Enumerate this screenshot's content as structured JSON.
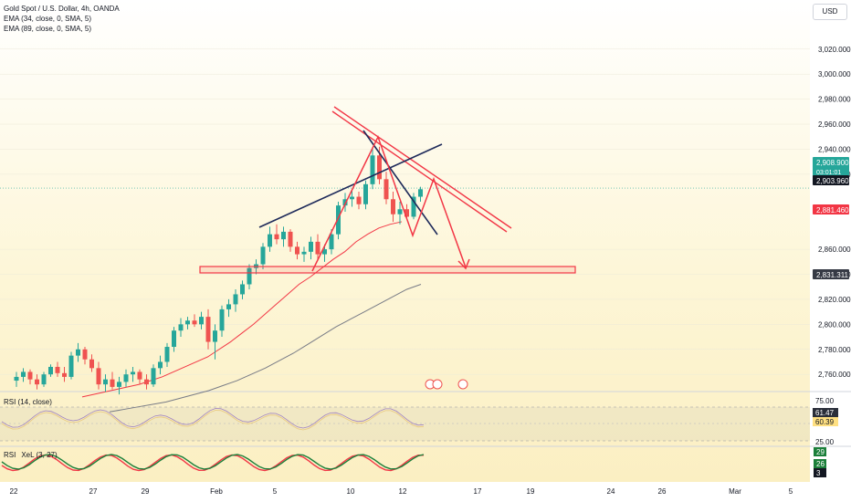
{
  "header": {
    "symbol": "Gold Spot / U.S. Dollar, 4h, OANDA",
    "ema1": "EMA (34, close, 0, SMA, 5)",
    "ema2": "EMA (89, close, 0, SMA, 5)",
    "currency": "USD"
  },
  "panes": {
    "rsi_label": "RSI (14, close)",
    "second_label": "RSI",
    "second_label_suffix": "XeL (3, 27)"
  },
  "chart_data": {
    "type": "candlestick",
    "price_axis": {
      "ticks": [
        "3,020.000",
        "3,000.000",
        "2,980.000",
        "2,960.000",
        "2,940.000",
        "2,920.000",
        "2,860.000",
        "2,840.000",
        "2,820.000",
        "2,800.000",
        "2,780.000",
        "2,760.000"
      ],
      "tick_values": [
        3020,
        3000,
        2980,
        2960,
        2940,
        2920,
        2860,
        2840,
        2820,
        2800,
        2780,
        2760
      ],
      "ylim": [
        2747,
        3041
      ],
      "badges": [
        {
          "text": "2,908.900",
          "value": 2908.9,
          "color": "#26a69a",
          "sub": "03:01:01"
        },
        {
          "text": "2,903.960",
          "value": 2903.96,
          "color": "#131722"
        },
        {
          "text": "2,881.460",
          "value": 2881.46,
          "color": "#f23645"
        },
        {
          "text": "2,831.311",
          "value": 2831.311,
          "color": "#363a45"
        }
      ]
    },
    "time_axis": {
      "labels": [
        "22",
        "27",
        "29",
        "Feb",
        "5",
        "10",
        "12",
        "17",
        "19",
        "24",
        "26",
        "Mar",
        "5"
      ]
    },
    "candles": [
      [
        2755,
        2762,
        2750,
        2758
      ],
      [
        2758,
        2765,
        2754,
        2762
      ],
      [
        2762,
        2764,
        2752,
        2756
      ],
      [
        2756,
        2760,
        2748,
        2752
      ],
      [
        2752,
        2762,
        2750,
        2760
      ],
      [
        2760,
        2768,
        2758,
        2766
      ],
      [
        2766,
        2770,
        2758,
        2761
      ],
      [
        2761,
        2766,
        2754,
        2758
      ],
      [
        2758,
        2778,
        2756,
        2775
      ],
      [
        2775,
        2785,
        2770,
        2780
      ],
      [
        2780,
        2782,
        2768,
        2772
      ],
      [
        2772,
        2776,
        2762,
        2765
      ],
      [
        2765,
        2770,
        2748,
        2752
      ],
      [
        2752,
        2760,
        2746,
        2756
      ],
      [
        2756,
        2762,
        2748,
        2750
      ],
      [
        2750,
        2758,
        2744,
        2754
      ],
      [
        2754,
        2764,
        2750,
        2760
      ],
      [
        2760,
        2766,
        2754,
        2762
      ],
      [
        2762,
        2764,
        2752,
        2756
      ],
      [
        2756,
        2760,
        2748,
        2752
      ],
      [
        2752,
        2768,
        2750,
        2765
      ],
      [
        2765,
        2775,
        2760,
        2770
      ],
      [
        2770,
        2785,
        2766,
        2782
      ],
      [
        2782,
        2798,
        2778,
        2795
      ],
      [
        2795,
        2805,
        2790,
        2800
      ],
      [
        2800,
        2806,
        2796,
        2803
      ],
      [
        2803,
        2808,
        2798,
        2800
      ],
      [
        2800,
        2810,
        2796,
        2806
      ],
      [
        2806,
        2812,
        2780,
        2786
      ],
      [
        2786,
        2800,
        2772,
        2795
      ],
      [
        2795,
        2815,
        2790,
        2812
      ],
      [
        2812,
        2820,
        2806,
        2816
      ],
      [
        2816,
        2828,
        2810,
        2824
      ],
      [
        2824,
        2835,
        2820,
        2832
      ],
      [
        2832,
        2848,
        2828,
        2845
      ],
      [
        2845,
        2852,
        2840,
        2848
      ],
      [
        2848,
        2865,
        2844,
        2862
      ],
      [
        2862,
        2878,
        2858,
        2872
      ],
      [
        2872,
        2880,
        2864,
        2868
      ],
      [
        2868,
        2878,
        2862,
        2874
      ],
      [
        2874,
        2876,
        2858,
        2862
      ],
      [
        2862,
        2866,
        2852,
        2856
      ],
      [
        2856,
        2862,
        2850,
        2858
      ],
      [
        2858,
        2870,
        2852,
        2866
      ],
      [
        2866,
        2872,
        2852,
        2856
      ],
      [
        2856,
        2864,
        2850,
        2860
      ],
      [
        2860,
        2876,
        2856,
        2872
      ],
      [
        2872,
        2898,
        2868,
        2895
      ],
      [
        2895,
        2905,
        2890,
        2900
      ],
      [
        2900,
        2908,
        2894,
        2902
      ],
      [
        2902,
        2906,
        2892,
        2896
      ],
      [
        2896,
        2915,
        2892,
        2912
      ],
      [
        2912,
        2940,
        2908,
        2935
      ],
      [
        2935,
        2942,
        2912,
        2916
      ],
      [
        2916,
        2922,
        2896,
        2900
      ],
      [
        2900,
        2906,
        2882,
        2888
      ],
      [
        2888,
        2898,
        2880,
        2892
      ],
      [
        2892,
        2896,
        2884,
        2886
      ],
      [
        2886,
        2905,
        2884,
        2902
      ],
      [
        2902,
        2910,
        2898,
        2908
      ]
    ],
    "ema34": [
      2742,
      2744,
      2746,
      2748,
      2750,
      2752,
      2755,
      2758,
      2762,
      2766,
      2770,
      2774,
      2780,
      2786,
      2793,
      2800,
      2808,
      2816,
      2824,
      2832,
      2838,
      2845,
      2852,
      2858,
      2866,
      2872,
      2877,
      2880,
      2882
    ],
    "ema89": [
      2730,
      2732,
      2734,
      2736,
      2738,
      2741,
      2744,
      2747,
      2751,
      2755,
      2760,
      2765,
      2771,
      2777,
      2784,
      2791,
      2798,
      2804,
      2810,
      2816,
      2822,
      2828,
      2832
    ],
    "rsi_scale": [
      "75.00",
      "61.47",
      "60.39",
      "25.00"
    ],
    "second_scale": [
      "29",
      "26",
      "3"
    ]
  }
}
